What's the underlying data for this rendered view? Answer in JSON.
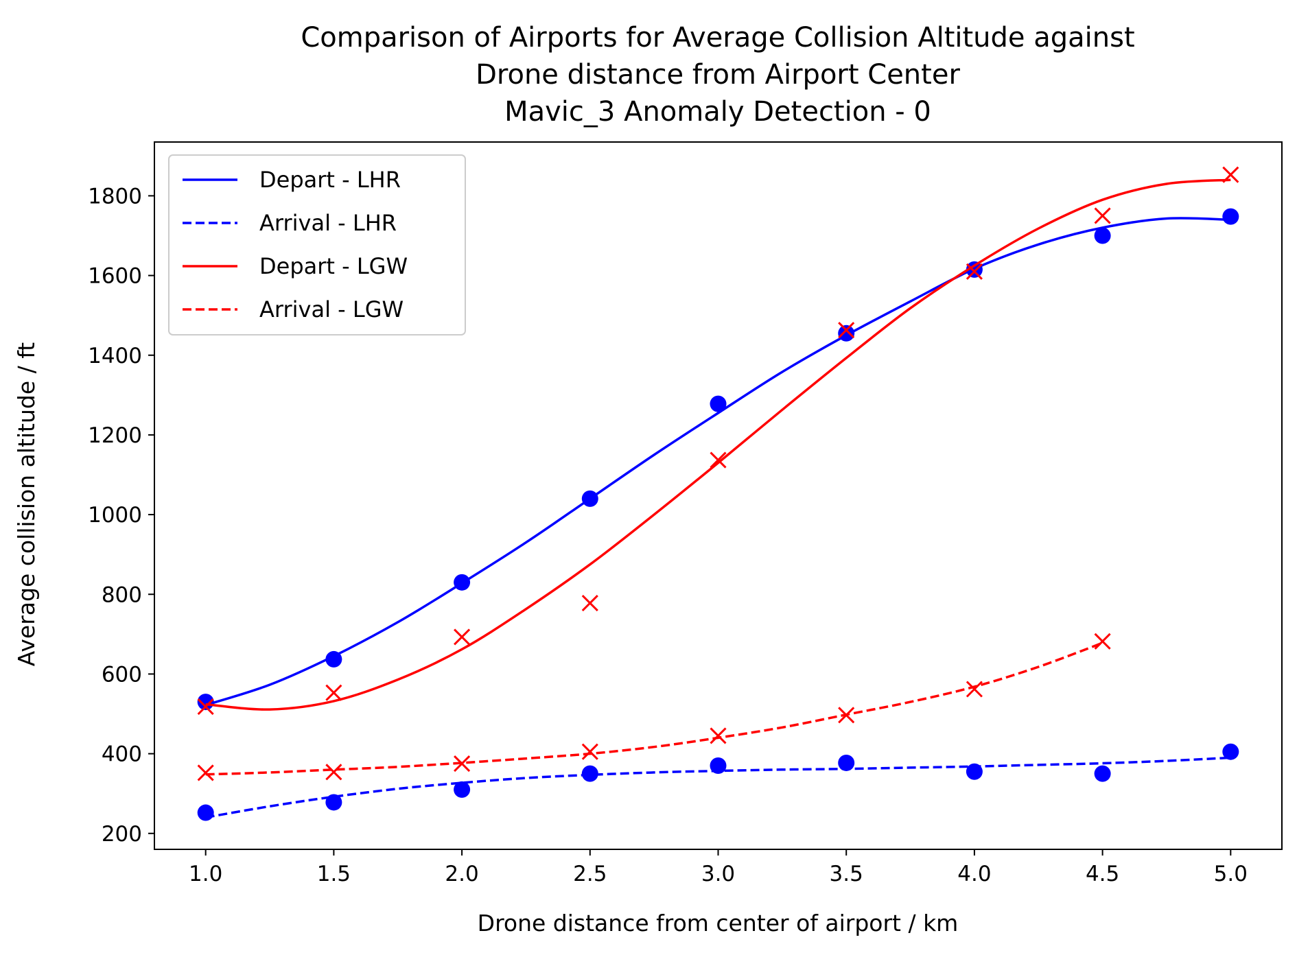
{
  "chart_data": {
    "type": "line",
    "title": [
      "Comparison of Airports for Average Collision Altitude against",
      "Drone distance from Airport Center",
      "Mavic_3 Anomaly Detection - 0"
    ],
    "xlabel": "Drone distance from center of airport / km",
    "ylabel": "Average collision altitude / ft",
    "xlim": [
      0.8,
      5.2
    ],
    "ylim": [
      160,
      1935
    ],
    "xticks": [
      1.0,
      1.5,
      2.0,
      2.5,
      3.0,
      3.5,
      4.0,
      4.5,
      5.0
    ],
    "xtick_labels": [
      "1.0",
      "1.5",
      "2.0",
      "2.5",
      "3.0",
      "3.5",
      "4.0",
      "4.5",
      "5.0"
    ],
    "yticks": [
      200,
      400,
      600,
      800,
      1000,
      1200,
      1400,
      1600,
      1800
    ],
    "ytick_labels": [
      "200",
      "400",
      "600",
      "800",
      "1000",
      "1200",
      "1400",
      "1600",
      "1800"
    ],
    "grid": false,
    "legend_position": "top-left",
    "series": [
      {
        "name": "Depart - LHR",
        "color": "#0000ff",
        "line_style": "solid",
        "marker": "circle",
        "points": {
          "x": [
            1.0,
            1.5,
            2.0,
            2.5,
            3.0,
            3.5,
            4.0,
            4.5,
            5.0
          ],
          "y": [
            530,
            637,
            830,
            1040,
            1278,
            1455,
            1615,
            1700,
            1748
          ]
        },
        "fit": {
          "x": [
            1.0,
            1.25,
            1.5,
            1.75,
            2.0,
            2.25,
            2.5,
            2.75,
            3.0,
            3.25,
            3.5,
            3.75,
            4.0,
            4.25,
            4.5,
            4.75,
            5.0
          ],
          "y": [
            522,
            573,
            645,
            730,
            828,
            930,
            1040,
            1150,
            1255,
            1358,
            1450,
            1535,
            1617,
            1678,
            1720,
            1743,
            1740
          ]
        }
      },
      {
        "name": "Arrival - LHR",
        "color": "#0000ff",
        "line_style": "dashed",
        "marker": "circle",
        "points": {
          "x": [
            1.0,
            1.5,
            2.0,
            2.5,
            3.0,
            3.5,
            4.0,
            4.5,
            5.0
          ],
          "y": [
            252,
            278,
            310,
            350,
            370,
            377,
            355,
            350,
            405
          ]
        },
        "fit": {
          "x": [
            1.0,
            1.25,
            1.5,
            1.75,
            2.0,
            2.25,
            2.5,
            2.75,
            3.0,
            3.25,
            3.5,
            3.75,
            4.0,
            4.25,
            4.5,
            4.75,
            5.0
          ],
          "y": [
            240,
            268,
            292,
            312,
            327,
            339,
            347,
            353,
            357,
            360,
            362,
            365,
            368,
            372,
            376,
            382,
            390
          ]
        }
      },
      {
        "name": "Depart - LGW",
        "color": "#ff0000",
        "line_style": "solid",
        "marker": "x",
        "points": {
          "x": [
            1.0,
            1.5,
            2.0,
            2.5,
            3.0,
            3.5,
            4.0,
            4.5,
            5.0
          ],
          "y": [
            518,
            553,
            693,
            778,
            1137,
            1463,
            1610,
            1750,
            1853
          ]
        },
        "fit": {
          "x": [
            1.0,
            1.25,
            1.5,
            1.75,
            2.0,
            2.25,
            2.5,
            2.75,
            3.0,
            3.25,
            3.5,
            3.75,
            4.0,
            4.25,
            4.5,
            4.75,
            5.0
          ],
          "y": [
            524,
            511,
            532,
            586,
            662,
            763,
            875,
            1000,
            1130,
            1263,
            1393,
            1518,
            1625,
            1718,
            1790,
            1830,
            1840
          ]
        }
      },
      {
        "name": "Arrival - LGW",
        "color": "#ff0000",
        "line_style": "dashed",
        "marker": "x",
        "points": {
          "x": [
            1.0,
            1.5,
            2.0,
            2.5,
            3.0,
            3.5,
            4.0,
            4.5
          ],
          "y": [
            352,
            354,
            375,
            405,
            445,
            497,
            562,
            682
          ]
        },
        "fit": {
          "x": [
            1.0,
            1.25,
            1.5,
            1.75,
            2.0,
            2.25,
            2.5,
            2.75,
            3.0,
            3.25,
            3.5,
            3.75,
            4.0,
            4.25,
            4.5
          ],
          "y": [
            348,
            353,
            360,
            367,
            377,
            388,
            400,
            417,
            440,
            466,
            498,
            530,
            568,
            618,
            678
          ]
        }
      }
    ]
  }
}
